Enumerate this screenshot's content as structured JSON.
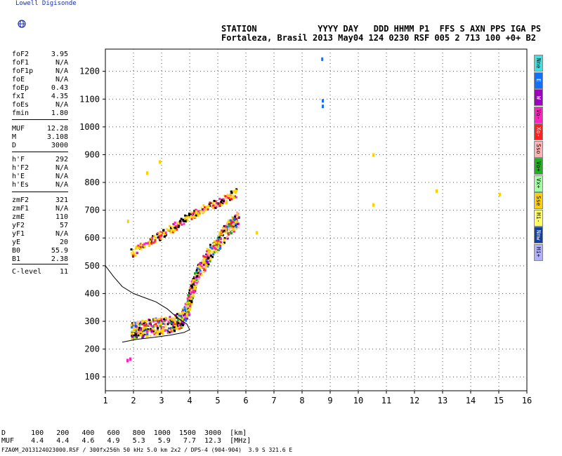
{
  "logo": {
    "text": "Lowell Digisonde",
    "icon": "globe-icon"
  },
  "header": {
    "line1": "STATION            YYYY DAY   DDD HHMM P1  FFS S AXN PPS IGA PS",
    "line2": "Fortaleza, Brasil 2013 May04 124 0230 RSF 005 2 713 100 +0+ B2"
  },
  "params": [
    {
      "k": "foF2",
      "v": "3.95"
    },
    {
      "k": "foF1",
      "v": "N/A"
    },
    {
      "k": "foF1p",
      "v": "N/A"
    },
    {
      "k": "foE",
      "v": "N/A"
    },
    {
      "k": "foEp",
      "v": "0.43"
    },
    {
      "k": "fxI",
      "v": "4.35"
    },
    {
      "k": "foEs",
      "v": "N/A"
    },
    {
      "k": "fmin",
      "v": "1.80"
    },
    {
      "k": "MUF",
      "v": "12.28"
    },
    {
      "k": "M",
      "v": "3.108"
    },
    {
      "k": "D",
      "v": "3000"
    },
    {
      "k": "h'F",
      "v": "292"
    },
    {
      "k": "h'F2",
      "v": "N/A"
    },
    {
      "k": "h'E",
      "v": "N/A"
    },
    {
      "k": "h'Es",
      "v": "N/A"
    },
    {
      "k": "zmF2",
      "v": "321"
    },
    {
      "k": "zmF1",
      "v": "N/A"
    },
    {
      "k": "zmE",
      "v": "110"
    },
    {
      "k": "yF2",
      "v": "57"
    },
    {
      "k": "yF1",
      "v": "N/A"
    },
    {
      "k": "yE",
      "v": "20"
    },
    {
      "k": "B0",
      "v": "55.9"
    },
    {
      "k": "B1",
      "v": "2.38"
    },
    {
      "k": "C-level",
      "v": "11"
    }
  ],
  "legend": [
    {
      "label": "Nne",
      "color": "#40e0e0"
    },
    {
      "label": "E",
      "color": "#1070ff"
    },
    {
      "label": "W",
      "color": "#a000c0"
    },
    {
      "label": "Vo-",
      "color": "#ff20c0"
    },
    {
      "label": "Xo-",
      "color": "#ff2020"
    },
    {
      "label": "Sso",
      "color": "#ffb0b0"
    },
    {
      "label": "Vo+",
      "color": "#20b020"
    },
    {
      "label": "Vx+",
      "color": "#a0ffa0"
    },
    {
      "label": "Sse",
      "color": "#ffd000"
    },
    {
      "label": "Hi-",
      "color": "#ffff60"
    },
    {
      "label": "Nnw",
      "color": "#1040a0"
    },
    {
      "label": "Hi+",
      "color": "#b0b0ff"
    }
  ],
  "footer": {
    "line1": "D      100   200   400   600   800  1000  1500  3000  [km]",
    "line2": "MUF    4.4   4.4   4.6   4.9   5.3   5.9   7.7  12.3  [MHz]",
    "line3": "FZA0M_2013124023000.RSF / 300fx256h 50 kHz 5.0 km 2x2 / DPS-4 (904-904)  3.9 S 321.6 E"
  },
  "chart_data": {
    "type": "scatter",
    "x_ticks": [
      "1",
      "2",
      "3",
      "4",
      "5",
      "6",
      "7",
      "8",
      "9",
      "10",
      "11",
      "12",
      "13",
      "14",
      "15",
      "16"
    ],
    "y_ticks": [
      "100",
      "200",
      "300",
      "400",
      "500",
      "600",
      "700",
      "800",
      "900",
      "1000",
      "1100",
      "1200"
    ],
    "xlim": [
      1,
      16
    ],
    "ylim": [
      50,
      1280
    ],
    "grid": true,
    "trace_lower": [
      [
        1.9,
        255
      ],
      [
        2.2,
        262
      ],
      [
        2.6,
        270
      ],
      [
        3.0,
        276
      ],
      [
        3.4,
        285
      ],
      [
        3.7,
        300
      ],
      [
        3.9,
        340
      ],
      [
        4.0,
        380
      ],
      [
        4.1,
        420
      ],
      [
        4.3,
        470
      ],
      [
        4.6,
        520
      ],
      [
        5.0,
        580
      ],
      [
        5.4,
        630
      ],
      [
        5.7,
        660
      ]
    ],
    "trace_upper": [
      [
        1.9,
        540
      ],
      [
        2.3,
        570
      ],
      [
        2.8,
        600
      ],
      [
        3.2,
        620
      ],
      [
        3.6,
        650
      ],
      [
        4.0,
        675
      ],
      [
        4.4,
        700
      ],
      [
        4.9,
        720
      ],
      [
        5.3,
        740
      ],
      [
        5.6,
        760
      ]
    ],
    "blobs": [
      [
        1.75,
        165
      ],
      [
        1.85,
        170
      ],
      [
        1.77,
        666
      ],
      [
        8.68,
        1250
      ],
      [
        8.7,
        1100
      ],
      [
        8.7,
        1080
      ],
      [
        10.5,
        905
      ],
      [
        10.5,
        725
      ],
      [
        12.75,
        775
      ],
      [
        15.0,
        763
      ],
      [
        2.45,
        840
      ],
      [
        2.9,
        880
      ],
      [
        6.35,
        625
      ],
      [
        5.6,
        775
      ]
    ],
    "profile_curve": [
      [
        1.0,
        500
      ],
      [
        1.3,
        460
      ],
      [
        1.6,
        425
      ],
      [
        2.0,
        400
      ],
      [
        2.4,
        385
      ],
      [
        2.8,
        370
      ],
      [
        3.2,
        345
      ],
      [
        3.6,
        310
      ],
      [
        3.9,
        290
      ],
      [
        4.0,
        270
      ],
      [
        3.8,
        260
      ],
      [
        3.3,
        250
      ],
      [
        2.7,
        242
      ],
      [
        2.1,
        235
      ],
      [
        1.6,
        225
      ]
    ]
  }
}
